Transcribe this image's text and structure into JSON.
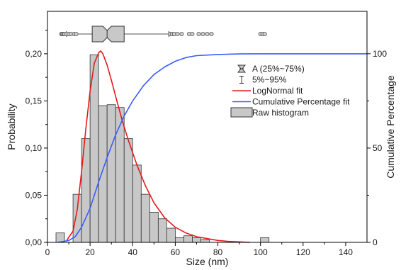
{
  "chart_data": {
    "type": "bar",
    "xlabel": "Size (nm)",
    "ylabel": "Probability",
    "y2label": "Cumulative Percentage",
    "xlim": [
      0,
      150
    ],
    "ylim": [
      0,
      0.245
    ],
    "y2lim": [
      0,
      122.5
    ],
    "x_ticks": [
      {
        "value": 0,
        "label": "0"
      },
      {
        "value": 20,
        "label": "20"
      },
      {
        "value": 40,
        "label": "40"
      },
      {
        "value": 60,
        "label": "60"
      },
      {
        "value": 80,
        "label": "80"
      },
      {
        "value": 100,
        "label": "100"
      },
      {
        "value": 120,
        "label": "120"
      },
      {
        "value": 140,
        "label": "140"
      }
    ],
    "y_ticks": [
      {
        "value": 0,
        "label": "0,00"
      },
      {
        "value": 0.05,
        "label": "0,05"
      },
      {
        "value": 0.1,
        "label": "0,10"
      },
      {
        "value": 0.15,
        "label": "0,15"
      },
      {
        "value": 0.2,
        "label": "0,20"
      }
    ],
    "y2_ticks": [
      {
        "value": 0,
        "label": "0"
      },
      {
        "value": 50,
        "label": "50"
      },
      {
        "value": 100,
        "label": "100"
      }
    ],
    "histogram": {
      "name": "Raw histogram",
      "color": "#c8c8c8",
      "bin_width": 4,
      "bin_starts": [
        4,
        8,
        12,
        16,
        20,
        24,
        28,
        32,
        36,
        40,
        44,
        48,
        52,
        56,
        60,
        64,
        68,
        72,
        76,
        80,
        84,
        88,
        92,
        96,
        100
      ],
      "values": [
        0.01,
        0.0,
        0.051,
        0.11,
        0.199,
        0.145,
        0.146,
        0.143,
        0.11,
        0.082,
        0.051,
        0.032,
        0.025,
        0.015,
        0.005,
        0.007,
        0.005,
        0.003,
        0.0,
        0.0,
        0.0,
        0.0,
        0.0,
        0.0,
        0.005
      ]
    },
    "series": [
      {
        "name": "LogNormal fit",
        "color": "#e41a1c",
        "axis": "left",
        "x": [
          9,
          12,
          14,
          16,
          18,
          20,
          22,
          24,
          25,
          26,
          28,
          30,
          32,
          35,
          38,
          42,
          46,
          50,
          55,
          60,
          65,
          70,
          75,
          80,
          85,
          90,
          95
        ],
        "y": [
          0.002,
          0.012,
          0.035,
          0.075,
          0.12,
          0.16,
          0.19,
          0.201,
          0.203,
          0.2,
          0.188,
          0.172,
          0.155,
          0.13,
          0.108,
          0.082,
          0.06,
          0.042,
          0.026,
          0.016,
          0.01,
          0.006,
          0.004,
          0.002,
          0.001,
          0.0005,
          0.0
        ]
      },
      {
        "name": "Cumulative Percentage fit",
        "color": "#3a5bff",
        "axis": "right",
        "x": [
          5,
          10,
          13,
          16,
          20,
          24,
          28,
          32,
          36,
          40,
          45,
          50,
          55,
          60,
          65,
          70,
          80,
          90,
          100,
          120,
          150
        ],
        "y": [
          0,
          1,
          3,
          8,
          18,
          32,
          45,
          57,
          67,
          75,
          83,
          89,
          93,
          96,
          98,
          99,
          99.6,
          99.9,
          100,
          100,
          100
        ]
      }
    ],
    "boxplot": {
      "q1": 21,
      "median": 28,
      "q3": 36,
      "notch_low": 26,
      "notch_high": 30,
      "whisker_low": 9,
      "whisker_high": 57,
      "outliers": [
        6.5,
        7,
        7.5,
        8,
        9,
        10,
        11,
        12.5,
        13.5,
        57.5,
        58.5,
        59.5,
        61,
        63,
        66.5,
        68,
        71,
        73,
        75,
        77,
        100,
        101,
        102
      ]
    },
    "legend": {
      "placement": "top-right",
      "entries": [
        {
          "symbol": "box",
          "label": "A (25%~75%)"
        },
        {
          "symbol": "whisker",
          "label": "5%~95%"
        },
        {
          "symbol": "red-line",
          "label": "LogNormal fit"
        },
        {
          "symbol": "blue-line",
          "label": "Cumulative Percentage fit"
        },
        {
          "symbol": "bar",
          "label": "Raw histogram"
        }
      ]
    }
  }
}
